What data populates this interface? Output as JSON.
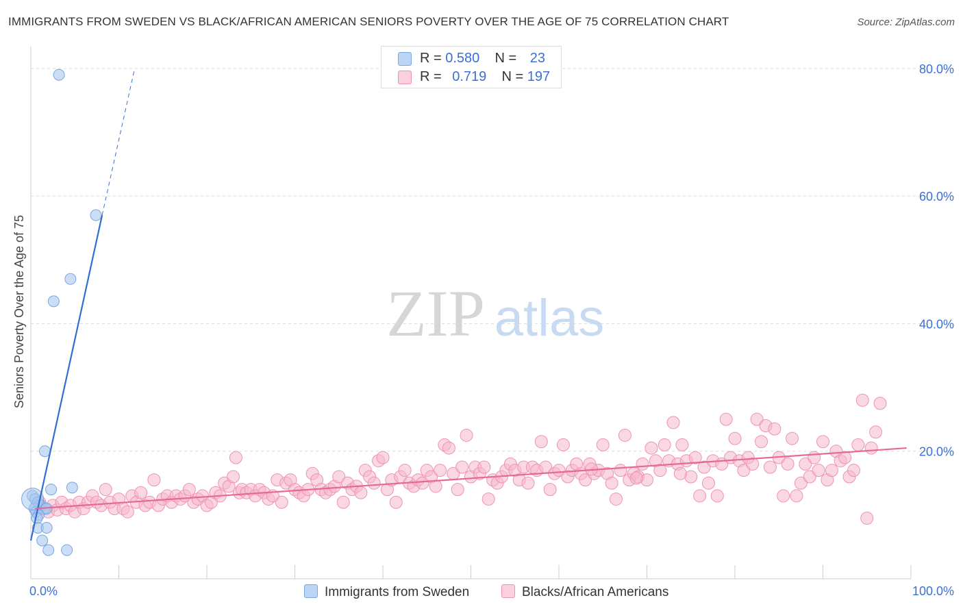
{
  "title": "IMMIGRANTS FROM SWEDEN VS BLACK/AFRICAN AMERICAN SENIORS POVERTY OVER THE AGE OF 75 CORRELATION CHART",
  "source": "Source: ZipAtlas.com",
  "watermark": {
    "zip": "ZIP",
    "atlas": "atlas"
  },
  "legend": {
    "r_label": "R =",
    "n_label": "N =",
    "series1": {
      "r": "0.580",
      "n": "23"
    },
    "series2": {
      "r": "0.719",
      "n": "197"
    }
  },
  "bottom_legend": {
    "series1": "Immigrants from Sweden",
    "series2": "Blacks/African Americans"
  },
  "colors": {
    "blue_fill": "#a8c8f0",
    "blue_stroke": "#7aa6dd",
    "blue_line": "#2f6fd0",
    "pink_fill": "#f6b8cc",
    "pink_stroke": "#ee92b0",
    "pink_line": "#e46a94",
    "tick_blue": "#3a6fd8",
    "grid": "#dddddd"
  },
  "chart_data": {
    "type": "scatter",
    "xlabel": "",
    "ylabel": "Seniors Poverty Over the Age of 75",
    "xlim": [
      0,
      100
    ],
    "ylim": [
      0,
      83
    ],
    "x_tick_labels": [
      {
        "value": 0,
        "label": "0.0%"
      },
      {
        "value": 100,
        "label": "100.0%"
      }
    ],
    "y_tick_labels": [
      {
        "value": 20,
        "label": "20.0%"
      },
      {
        "value": 40,
        "label": "40.0%"
      },
      {
        "value": 60,
        "label": "60.0%"
      },
      {
        "value": 80,
        "label": "80.0%"
      }
    ],
    "series": [
      {
        "name": "Immigrants from Sweden",
        "r": 0.58,
        "n": 23,
        "trend": {
          "x0": 0,
          "y0": 6,
          "x1": 8.1,
          "y1": 57,
          "dash_to_x": 11.8,
          "dash_to_y": 80
        },
        "points": [
          [
            3.2,
            79
          ],
          [
            7.4,
            57
          ],
          [
            4.5,
            47
          ],
          [
            2.6,
            43.5
          ],
          [
            1.6,
            20
          ],
          [
            2.3,
            14
          ],
          [
            4.7,
            14.3
          ],
          [
            0.2,
            13
          ],
          [
            0.5,
            12.5
          ],
          [
            0.8,
            12
          ],
          [
            1.2,
            11.5
          ],
          [
            1.6,
            11
          ],
          [
            1.0,
            11.5
          ],
          [
            1.8,
            11
          ],
          [
            0.4,
            11
          ],
          [
            0.6,
            10.5
          ],
          [
            0.9,
            10
          ],
          [
            0.7,
            9.5
          ],
          [
            0.8,
            8
          ],
          [
            1.8,
            8
          ],
          [
            1.3,
            6
          ],
          [
            2.0,
            4.5
          ],
          [
            4.1,
            4.5
          ]
        ]
      },
      {
        "name": "Blacks/African Americans",
        "r": 0.719,
        "n": 197,
        "trend": {
          "x0": 0.5,
          "y0": 11,
          "x1": 99.5,
          "y1": 20.5
        },
        "points": [
          [
            0.5,
            11
          ],
          [
            1.0,
            12
          ],
          [
            1.5,
            11
          ],
          [
            2,
            10.5
          ],
          [
            2.5,
            11.5
          ],
          [
            3,
            10.8
          ],
          [
            3.5,
            12
          ],
          [
            4,
            11
          ],
          [
            4.5,
            11.5
          ],
          [
            5,
            10.5
          ],
          [
            5.5,
            12
          ],
          [
            6,
            11
          ],
          [
            6.5,
            12
          ],
          [
            7,
            13
          ],
          [
            7.5,
            12
          ],
          [
            8,
            11.5
          ],
          [
            8.5,
            14
          ],
          [
            9,
            12
          ],
          [
            9.5,
            11
          ],
          [
            10,
            12.5
          ],
          [
            10.5,
            11
          ],
          [
            11,
            10.5
          ],
          [
            11.5,
            13
          ],
          [
            12,
            12
          ],
          [
            12.5,
            13.5
          ],
          [
            13,
            11.5
          ],
          [
            13.5,
            12
          ],
          [
            14,
            15.5
          ],
          [
            14.5,
            11.5
          ],
          [
            15,
            12.5
          ],
          [
            15.5,
            13
          ],
          [
            16,
            12
          ],
          [
            16.5,
            13
          ],
          [
            17,
            12.5
          ],
          [
            17.5,
            13
          ],
          [
            18,
            14
          ],
          [
            18.5,
            12
          ],
          [
            19,
            12.5
          ],
          [
            19.5,
            13
          ],
          [
            20,
            11.5
          ],
          [
            20.5,
            12
          ],
          [
            21,
            13.5
          ],
          [
            21.5,
            13
          ],
          [
            22,
            15
          ],
          [
            22.5,
            14.5
          ],
          [
            23,
            16
          ],
          [
            23.3,
            19
          ],
          [
            23.7,
            13.5
          ],
          [
            24,
            14
          ],
          [
            24.5,
            13.5
          ],
          [
            25,
            14
          ],
          [
            25.5,
            13
          ],
          [
            26,
            14
          ],
          [
            26.5,
            13.5
          ],
          [
            27,
            12.5
          ],
          [
            27.5,
            13
          ],
          [
            28,
            15.5
          ],
          [
            28.5,
            12
          ],
          [
            29,
            15
          ],
          [
            29.5,
            15.5
          ],
          [
            30,
            14
          ],
          [
            30.5,
            13.5
          ],
          [
            31,
            13
          ],
          [
            31.5,
            14
          ],
          [
            32,
            16.5
          ],
          [
            32.5,
            15.5
          ],
          [
            33,
            14
          ],
          [
            33.5,
            13.5
          ],
          [
            34,
            14
          ],
          [
            34.5,
            14.5
          ],
          [
            35,
            16
          ],
          [
            35.5,
            12
          ],
          [
            36,
            15
          ],
          [
            36.5,
            14
          ],
          [
            37,
            14.5
          ],
          [
            37.5,
            13.5
          ],
          [
            38,
            17
          ],
          [
            38.5,
            16
          ],
          [
            39,
            15
          ],
          [
            39.5,
            18.5
          ],
          [
            40,
            19
          ],
          [
            40.5,
            14
          ],
          [
            41,
            15.5
          ],
          [
            41.5,
            12
          ],
          [
            42,
            16
          ],
          [
            42.5,
            17
          ],
          [
            43,
            15
          ],
          [
            43.5,
            14.5
          ],
          [
            44,
            15.5
          ],
          [
            44.5,
            15
          ],
          [
            45,
            17
          ],
          [
            45.5,
            16
          ],
          [
            46,
            14.5
          ],
          [
            46.5,
            17
          ],
          [
            47,
            21
          ],
          [
            47.5,
            20.5
          ],
          [
            48,
            16.5
          ],
          [
            48.5,
            14
          ],
          [
            49,
            17.5
          ],
          [
            49.5,
            22.5
          ],
          [
            50,
            16
          ],
          [
            50.5,
            17.5
          ],
          [
            51,
            16.5
          ],
          [
            51.5,
            17.5
          ],
          [
            52,
            12.5
          ],
          [
            52.5,
            15.5
          ],
          [
            53,
            15
          ],
          [
            53.5,
            16
          ],
          [
            54,
            17
          ],
          [
            54.5,
            18
          ],
          [
            55,
            17
          ],
          [
            55.5,
            15.5
          ],
          [
            56,
            17.5
          ],
          [
            56.5,
            15
          ],
          [
            57,
            17.5
          ],
          [
            57.5,
            17
          ],
          [
            58,
            21.5
          ],
          [
            58.5,
            17.5
          ],
          [
            59,
            14
          ],
          [
            59.5,
            16.5
          ],
          [
            60,
            17
          ],
          [
            60.5,
            21
          ],
          [
            61,
            16
          ],
          [
            61.5,
            17
          ],
          [
            62,
            18
          ],
          [
            62.5,
            16.5
          ],
          [
            63,
            15.5
          ],
          [
            63.5,
            18
          ],
          [
            64,
            16.5
          ],
          [
            64.5,
            17
          ],
          [
            65,
            21
          ],
          [
            65.5,
            16.5
          ],
          [
            66,
            15
          ],
          [
            66.5,
            12.5
          ],
          [
            67,
            17
          ],
          [
            67.5,
            22.5
          ],
          [
            68,
            15.5
          ],
          [
            68.5,
            16.5
          ],
          [
            69,
            16
          ],
          [
            69.5,
            18
          ],
          [
            70,
            15.5
          ],
          [
            70.5,
            20.5
          ],
          [
            71,
            18.5
          ],
          [
            71.5,
            17
          ],
          [
            72,
            21
          ],
          [
            72.5,
            18.5
          ],
          [
            73,
            24.5
          ],
          [
            73.5,
            18
          ],
          [
            74,
            21
          ],
          [
            74.5,
            18.5
          ],
          [
            75,
            16
          ],
          [
            75.5,
            19
          ],
          [
            76,
            13
          ],
          [
            76.5,
            17.5
          ],
          [
            77,
            15
          ],
          [
            77.5,
            18.5
          ],
          [
            78,
            13
          ],
          [
            78.5,
            18
          ],
          [
            79,
            25
          ],
          [
            79.5,
            19
          ],
          [
            80,
            22
          ],
          [
            80.5,
            18.5
          ],
          [
            81,
            17
          ],
          [
            81.5,
            19
          ],
          [
            82,
            18
          ],
          [
            82.5,
            25
          ],
          [
            83,
            21.5
          ],
          [
            83.5,
            24
          ],
          [
            84,
            17.5
          ],
          [
            84.5,
            23.5
          ],
          [
            85,
            19
          ],
          [
            85.5,
            13
          ],
          [
            86,
            18
          ],
          [
            86.5,
            22
          ],
          [
            87,
            13
          ],
          [
            87.5,
            15
          ],
          [
            88,
            18
          ],
          [
            88.5,
            16
          ],
          [
            89,
            19
          ],
          [
            89.5,
            17
          ],
          [
            90,
            21.5
          ],
          [
            90.5,
            15.5
          ],
          [
            91,
            17
          ],
          [
            91.5,
            20
          ],
          [
            92,
            18.5
          ],
          [
            92.5,
            19
          ],
          [
            93,
            16
          ],
          [
            93.5,
            17
          ],
          [
            94,
            21
          ],
          [
            94.5,
            28
          ],
          [
            95,
            9.5
          ],
          [
            95.5,
            20.5
          ],
          [
            96,
            23
          ],
          [
            96.5,
            27.5
          ],
          [
            73.8,
            16.5
          ],
          [
            68.8,
            15.8
          ],
          [
            63.7,
            17.2
          ]
        ]
      }
    ]
  }
}
